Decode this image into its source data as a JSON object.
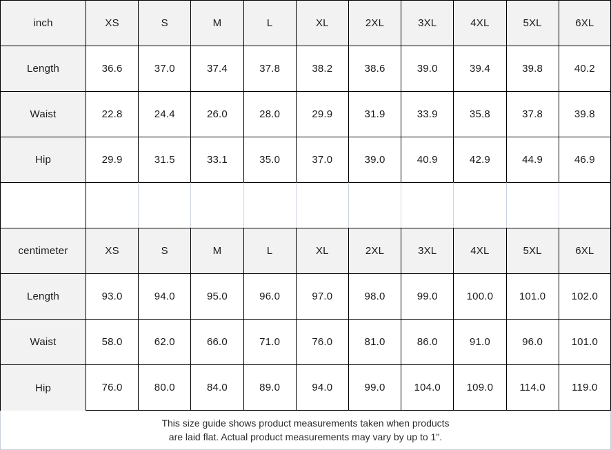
{
  "inch": {
    "unit": "inch",
    "sizes": [
      "XS",
      "S",
      "M",
      "L",
      "XL",
      "2XL",
      "3XL",
      "4XL",
      "5XL",
      "6XL"
    ],
    "rows": [
      {
        "label": "Length",
        "values": [
          "36.6",
          "37.0",
          "37.4",
          "37.8",
          "38.2",
          "38.6",
          "39.0",
          "39.4",
          "39.8",
          "40.2"
        ]
      },
      {
        "label": "Waist",
        "values": [
          "22.8",
          "24.4",
          "26.0",
          "28.0",
          "29.9",
          "31.9",
          "33.9",
          "35.8",
          "37.8",
          "39.8"
        ]
      },
      {
        "label": "Hip",
        "values": [
          "29.9",
          "31.5",
          "33.1",
          "35.0",
          "37.0",
          "39.0",
          "40.9",
          "42.9",
          "44.9",
          "46.9"
        ]
      }
    ]
  },
  "cm": {
    "unit": "centimeter",
    "sizes": [
      "XS",
      "S",
      "M",
      "L",
      "XL",
      "2XL",
      "3XL",
      "4XL",
      "5XL",
      "6XL"
    ],
    "rows": [
      {
        "label": "Length",
        "values": [
          "93.0",
          "94.0",
          "95.0",
          "96.0",
          "97.0",
          "98.0",
          "99.0",
          "100.0",
          "101.0",
          "102.0"
        ]
      },
      {
        "label": "Waist",
        "values": [
          "58.0",
          "62.0",
          "66.0",
          "71.0",
          "76.0",
          "81.0",
          "86.0",
          "91.0",
          "96.0",
          "101.0"
        ]
      },
      {
        "label": "Hip",
        "values": [
          "76.0",
          "80.0",
          "84.0",
          "89.0",
          "94.0",
          "99.0",
          "104.0",
          "109.0",
          "114.0",
          "119.0"
        ]
      }
    ]
  },
  "footer": {
    "line1": "This size guide shows product measurements taken when products",
    "line2": "are laid flat. Actual product measurements may vary by up to 1\"."
  },
  "colors": {
    "header_bg": "#f2f2f2",
    "grid_border": "#000000",
    "light_border": "#ccd4e2"
  }
}
